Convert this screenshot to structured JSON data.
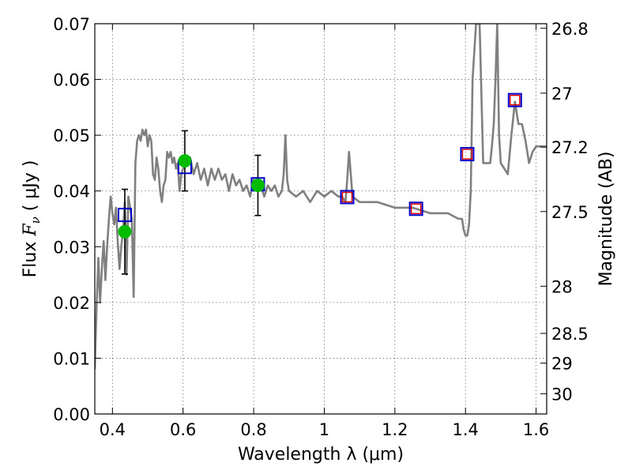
{
  "chart_data": {
    "type": "line",
    "xlabel": "Wavelength  λ (μm)",
    "ylabel_text": "Flux  ",
    "ylabel_symbol": "F",
    "ylabel_subscript": "ν",
    "ylabel_units": " ( μJy )",
    "y2label": "Magnitude (AB)",
    "xlim": [
      0.35,
      1.63
    ],
    "ylim": [
      0.0,
      0.07
    ],
    "grid": true,
    "x_ticks": [
      {
        "value": 0.4,
        "label": "0.4"
      },
      {
        "value": 0.6,
        "label": "0.6"
      },
      {
        "value": 0.8,
        "label": "0.8"
      },
      {
        "value": 1.0,
        "label": "1"
      },
      {
        "value": 1.2,
        "label": "1.2"
      },
      {
        "value": 1.4,
        "label": "1.4"
      },
      {
        "value": 1.6,
        "label": "1.6"
      }
    ],
    "y_ticks": [
      {
        "value": 0.0,
        "label": "0.00"
      },
      {
        "value": 0.01,
        "label": "0.01"
      },
      {
        "value": 0.02,
        "label": "0.02"
      },
      {
        "value": 0.03,
        "label": "0.03"
      },
      {
        "value": 0.04,
        "label": "0.04"
      },
      {
        "value": 0.05,
        "label": "0.05"
      },
      {
        "value": 0.06,
        "label": "0.06"
      },
      {
        "value": 0.07,
        "label": "0.07"
      }
    ],
    "y2_ticks": [
      {
        "value": 26.8,
        "label": "26.8"
      },
      {
        "value": 27.0,
        "label": "27"
      },
      {
        "value": 27.2,
        "label": "27.2"
      },
      {
        "value": 27.5,
        "label": "27.5"
      },
      {
        "value": 28.0,
        "label": "28"
      },
      {
        "value": 28.5,
        "label": "28.5"
      },
      {
        "value": 29.0,
        "label": "29"
      },
      {
        "value": 30.0,
        "label": "30"
      }
    ],
    "model_spectrum": {
      "color": "#808080",
      "x": [
        0.35,
        0.355,
        0.36,
        0.365,
        0.37,
        0.375,
        0.38,
        0.385,
        0.39,
        0.395,
        0.4,
        0.405,
        0.41,
        0.415,
        0.42,
        0.425,
        0.43,
        0.435,
        0.44,
        0.445,
        0.45,
        0.455,
        0.46,
        0.465,
        0.47,
        0.475,
        0.48,
        0.485,
        0.49,
        0.495,
        0.5,
        0.505,
        0.51,
        0.515,
        0.52,
        0.525,
        0.53,
        0.535,
        0.54,
        0.545,
        0.55,
        0.555,
        0.56,
        0.565,
        0.57,
        0.575,
        0.58,
        0.585,
        0.59,
        0.595,
        0.6,
        0.61,
        0.62,
        0.63,
        0.64,
        0.65,
        0.66,
        0.67,
        0.68,
        0.69,
        0.7,
        0.71,
        0.72,
        0.73,
        0.74,
        0.75,
        0.76,
        0.77,
        0.78,
        0.79,
        0.8,
        0.81,
        0.82,
        0.83,
        0.84,
        0.85,
        0.86,
        0.87,
        0.88,
        0.885,
        0.89,
        0.895,
        0.9,
        0.92,
        0.94,
        0.96,
        0.98,
        1.0,
        1.02,
        1.04,
        1.05,
        1.06,
        1.065,
        1.07,
        1.075,
        1.08,
        1.1,
        1.15,
        1.2,
        1.25,
        1.3,
        1.35,
        1.38,
        1.39,
        1.395,
        1.4,
        1.405,
        1.41,
        1.415,
        1.42,
        1.43,
        1.44,
        1.45,
        1.46,
        1.47,
        1.475,
        1.48,
        1.485,
        1.49,
        1.495,
        1.5,
        1.51,
        1.52,
        1.53,
        1.54,
        1.55,
        1.56,
        1.57,
        1.58,
        1.59,
        1.6,
        1.63
      ],
      "y": [
        0.008,
        0.019,
        0.028,
        0.02,
        0.026,
        0.031,
        0.024,
        0.03,
        0.035,
        0.039,
        0.036,
        0.034,
        0.037,
        0.031,
        0.026,
        0.03,
        0.033,
        0.038,
        0.025,
        0.039,
        0.037,
        0.035,
        0.021,
        0.045,
        0.049,
        0.05,
        0.049,
        0.051,
        0.05,
        0.051,
        0.048,
        0.05,
        0.049,
        0.043,
        0.042,
        0.046,
        0.044,
        0.04,
        0.038,
        0.041,
        0.042,
        0.047,
        0.046,
        0.047,
        0.045,
        0.046,
        0.044,
        0.045,
        0.04,
        0.043,
        0.044,
        0.045,
        0.046,
        0.043,
        0.045,
        0.042,
        0.044,
        0.041,
        0.044,
        0.042,
        0.044,
        0.042,
        0.043,
        0.04,
        0.043,
        0.041,
        0.042,
        0.04,
        0.041,
        0.039,
        0.042,
        0.04,
        0.041,
        0.039,
        0.041,
        0.04,
        0.041,
        0.039,
        0.04,
        0.043,
        0.05,
        0.042,
        0.04,
        0.039,
        0.04,
        0.038,
        0.04,
        0.039,
        0.04,
        0.039,
        0.039,
        0.038,
        0.042,
        0.047,
        0.043,
        0.039,
        0.038,
        0.038,
        0.037,
        0.037,
        0.036,
        0.036,
        0.035,
        0.035,
        0.033,
        0.032,
        0.032,
        0.034,
        0.04,
        0.06,
        0.07,
        0.07,
        0.045,
        0.045,
        0.045,
        0.048,
        0.052,
        0.06,
        0.07,
        0.05,
        0.045,
        0.044,
        0.043,
        0.05,
        0.056,
        0.052,
        0.052,
        0.049,
        0.045,
        0.047,
        0.048,
        0.048
      ],
      "y_clipped": true
    },
    "observed_points": {
      "color": "#00bb00",
      "x": [
        0.435,
        0.605,
        0.812
      ],
      "y": [
        0.0327,
        0.0454,
        0.041
      ],
      "y_err": [
        0.0076,
        0.0054,
        0.0054
      ]
    },
    "model_bandpass_blue": {
      "color": "#0000cc",
      "x": [
        0.435,
        0.605,
        0.812,
        1.065,
        1.26,
        1.405,
        1.54
      ],
      "y": [
        0.0357,
        0.0443,
        0.0412,
        0.0389,
        0.0368,
        0.0466,
        0.0563
      ]
    },
    "model_bandpass_red": {
      "color": "#dd0000",
      "x": [
        1.065,
        1.26,
        1.405,
        1.54
      ],
      "y": [
        0.0389,
        0.0368,
        0.0466,
        0.0563
      ]
    }
  }
}
